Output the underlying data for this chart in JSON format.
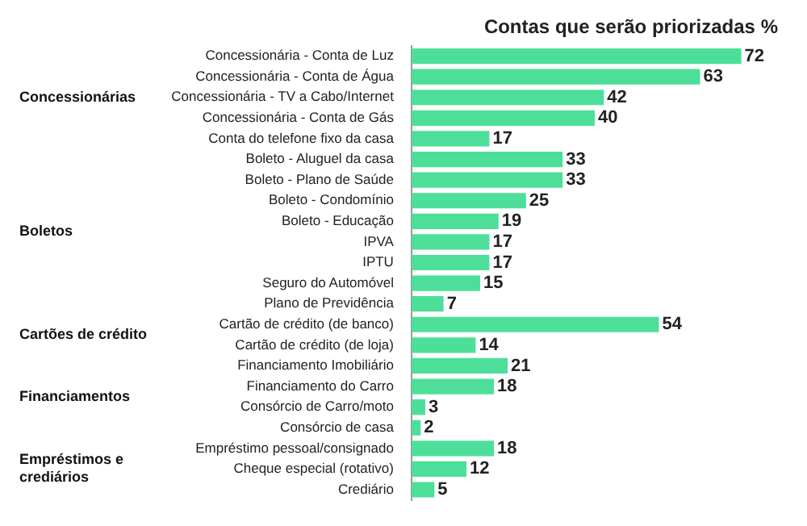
{
  "chart_data": {
    "type": "bar",
    "orientation": "horizontal",
    "title": "Contas que serão priorizadas %",
    "categories": [
      "Concessionária - Conta de Luz",
      "Concessionária - Conta de Água",
      "Concessionária - TV a Cabo/Internet",
      "Concessionária - Conta de Gás",
      "Conta do telefone fixo da casa",
      "Boleto - Aluguel da casa",
      "Boleto - Plano de Saúde",
      "Boleto - Condomínio",
      "Boleto - Educação",
      "IPVA",
      "IPTU",
      "Seguro do Automóvel",
      "Plano de Previdência",
      "Cartão de crédito (de banco)",
      "Cartão de crédito (de loja)",
      "Financiamento Imobiliário",
      "Financiamento do Carro",
      "Consórcio de Carro/moto",
      "Consórcio de casa",
      "Empréstimo pessoal/consignado",
      "Cheque especial (rotativo)",
      "Crediário"
    ],
    "values": [
      72,
      63,
      42,
      40,
      17,
      33,
      33,
      25,
      19,
      17,
      17,
      15,
      7,
      54,
      14,
      21,
      18,
      3,
      2,
      18,
      12,
      5
    ],
    "color": "#4ddf9a",
    "data_labels": true,
    "legend": false,
    "annotations": [
      "Concessionárias",
      "Boletos",
      "Cartões de crédito",
      "Financiamentos",
      "Empréstimos e crediários"
    ]
  }
}
